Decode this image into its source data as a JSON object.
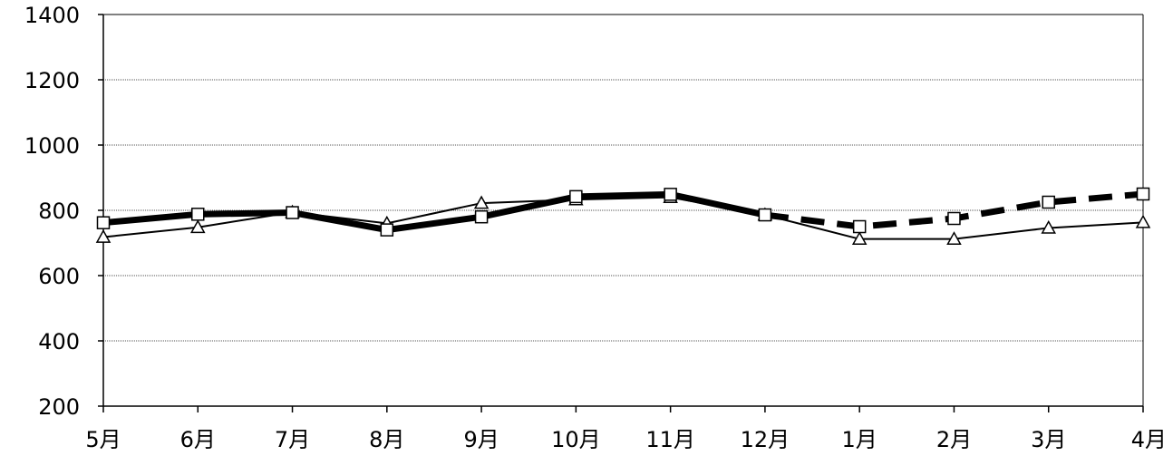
{
  "chart_data": {
    "type": "line",
    "categories": [
      "5月",
      "6月",
      "7月",
      "8月",
      "9月",
      "10月",
      "11月",
      "12月",
      "1月",
      "2月",
      "3月",
      "4月"
    ],
    "ylim": [
      200,
      1400
    ],
    "yticks": [
      200,
      400,
      600,
      800,
      1000,
      1200,
      1400
    ],
    "grid": true,
    "series": [
      {
        "marker": "square",
        "style": "thick",
        "solid_until_index": 7,
        "dashed_after": true,
        "values": [
          762,
          788,
          793,
          740,
          780,
          842,
          849,
          786,
          750,
          775,
          825,
          850
        ],
        "color": "#000000"
      },
      {
        "marker": "triangle",
        "style": "thin",
        "values": [
          718,
          748,
          794,
          760,
          822,
          833,
          840,
          786,
          712,
          712,
          746,
          763
        ],
        "color": "#000000"
      }
    ]
  }
}
